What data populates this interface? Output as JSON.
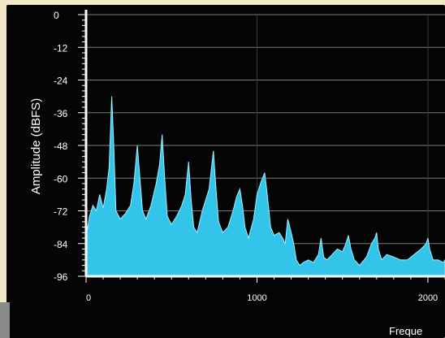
{
  "chart_data": {
    "type": "area",
    "ylabel": "Amplitude (dBFS)",
    "xlabel": "Freque",
    "ylim": [
      -96,
      0
    ],
    "xlim": [
      0,
      2100
    ],
    "y_ticks": [
      0,
      -12,
      -24,
      -36,
      -48,
      -60,
      -72,
      -84,
      -96
    ],
    "y_tick_labels": [
      "0",
      "-12",
      "-24",
      "-36",
      "-48",
      "-60",
      "-72",
      "-84",
      "-96"
    ],
    "x_ticks": [
      0,
      1000,
      2000
    ],
    "x_tick_labels": [
      "0",
      "1000",
      "2000"
    ],
    "grid": true,
    "colors": {
      "fill": "#33c4ea",
      "edge": "#9ef0ff",
      "background": "#050505",
      "grid": "#7a7a7a",
      "text": "#ffffff"
    },
    "series": [
      {
        "x": [
          0,
          20,
          40,
          60,
          80,
          100,
          120,
          135,
          150,
          160,
          175,
          200,
          230,
          260,
          280,
          300,
          315,
          330,
          350,
          380,
          410,
          430,
          445,
          460,
          475,
          500,
          530,
          560,
          580,
          600,
          615,
          630,
          650,
          680,
          720,
          745,
          760,
          775,
          800,
          830,
          860,
          880,
          900,
          915,
          930,
          950,
          980,
          1000,
          1020,
          1045,
          1060,
          1080,
          1100,
          1130,
          1150,
          1165,
          1180,
          1200,
          1215,
          1230,
          1250,
          1270,
          1300,
          1330,
          1360,
          1375,
          1390,
          1410,
          1440,
          1470,
          1500,
          1520,
          1535,
          1550,
          1570,
          1600,
          1640,
          1670,
          1690,
          1700,
          1710,
          1730,
          1760,
          1800,
          1840,
          1880,
          1920,
          1960,
          1990,
          2000,
          2010,
          2030,
          2060,
          2090,
          2100
        ],
        "y": [
          -82,
          -74,
          -70,
          -72,
          -66,
          -71,
          -64,
          -56,
          -30,
          -45,
          -72,
          -75,
          -73,
          -70,
          -62,
          -48,
          -60,
          -72,
          -75,
          -70,
          -62,
          -55,
          -44,
          -60,
          -74,
          -77,
          -74,
          -70,
          -66,
          -54,
          -68,
          -78,
          -80,
          -72,
          -64,
          -50,
          -64,
          -76,
          -80,
          -78,
          -72,
          -67,
          -64,
          -70,
          -78,
          -82,
          -75,
          -66,
          -62,
          -58,
          -66,
          -78,
          -81,
          -80,
          -82,
          -84,
          -75,
          -80,
          -84,
          -90,
          -92,
          -91,
          -90,
          -91,
          -88,
          -82,
          -89,
          -90,
          -88,
          -86,
          -87,
          -84,
          -81,
          -86,
          -90,
          -92,
          -89,
          -84,
          -82,
          -80,
          -86,
          -90,
          -88,
          -89,
          -90,
          -90,
          -88,
          -86,
          -84,
          -82,
          -86,
          -90,
          -90,
          -91,
          -90
        ]
      }
    ]
  }
}
